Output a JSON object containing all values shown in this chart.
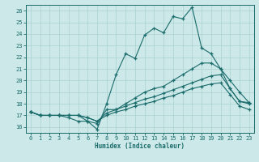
{
  "bg_color": "#cce8e8",
  "grid_color": "#aad0d0",
  "line_color": "#1a6b6b",
  "xlabel": "Humidex (Indice chaleur)",
  "xlim": [
    -0.5,
    23.5
  ],
  "ylim": [
    15.5,
    26.5
  ],
  "xticks": [
    0,
    1,
    2,
    3,
    4,
    5,
    6,
    7,
    8,
    9,
    10,
    11,
    12,
    13,
    14,
    15,
    16,
    17,
    18,
    19,
    20,
    21,
    22,
    23
  ],
  "yticks": [
    16,
    17,
    18,
    19,
    20,
    21,
    22,
    23,
    24,
    25,
    26
  ],
  "series": [
    {
      "x": [
        0,
        1,
        2,
        3,
        4,
        5,
        6,
        7,
        8,
        9,
        10,
        11,
        12,
        13,
        14,
        15,
        16,
        17,
        18,
        19,
        20,
        21,
        22,
        23
      ],
      "y": [
        17.3,
        17.0,
        17.0,
        17.0,
        17.0,
        17.0,
        16.5,
        15.8,
        18.0,
        20.5,
        22.3,
        21.9,
        23.9,
        24.5,
        24.1,
        25.5,
        25.3,
        26.3,
        22.8,
        22.3,
        21.0,
        20.0,
        19.0,
        18.1
      ]
    },
    {
      "x": [
        0,
        1,
        2,
        3,
        4,
        5,
        6,
        7,
        8,
        9,
        10,
        11,
        12,
        13,
        14,
        15,
        16,
        17,
        18,
        19,
        20,
        21,
        22,
        23
      ],
      "y": [
        17.3,
        17.0,
        17.0,
        17.0,
        16.8,
        16.5,
        16.5,
        16.3,
        17.5,
        17.5,
        18.0,
        18.5,
        19.0,
        19.3,
        19.5,
        20.0,
        20.5,
        21.0,
        21.5,
        21.5,
        21.0,
        19.3,
        18.2,
        18.1
      ]
    },
    {
      "x": [
        0,
        1,
        2,
        3,
        4,
        5,
        6,
        7,
        8,
        9,
        10,
        11,
        12,
        13,
        14,
        15,
        16,
        17,
        18,
        19,
        20,
        21,
        22,
        23
      ],
      "y": [
        17.3,
        17.0,
        17.0,
        17.0,
        17.0,
        17.0,
        16.8,
        16.5,
        17.2,
        17.5,
        17.8,
        18.1,
        18.4,
        18.6,
        18.9,
        19.2,
        19.5,
        19.8,
        20.1,
        20.4,
        20.5,
        19.3,
        18.2,
        18.0
      ]
    },
    {
      "x": [
        0,
        1,
        2,
        3,
        4,
        5,
        6,
        7,
        8,
        9,
        10,
        11,
        12,
        13,
        14,
        15,
        16,
        17,
        18,
        19,
        20,
        21,
        22,
        23
      ],
      "y": [
        17.3,
        17.0,
        17.0,
        17.0,
        17.0,
        17.0,
        16.8,
        16.5,
        17.0,
        17.3,
        17.5,
        17.8,
        18.0,
        18.2,
        18.5,
        18.7,
        19.0,
        19.3,
        19.5,
        19.7,
        19.8,
        18.8,
        17.8,
        17.5
      ]
    }
  ]
}
